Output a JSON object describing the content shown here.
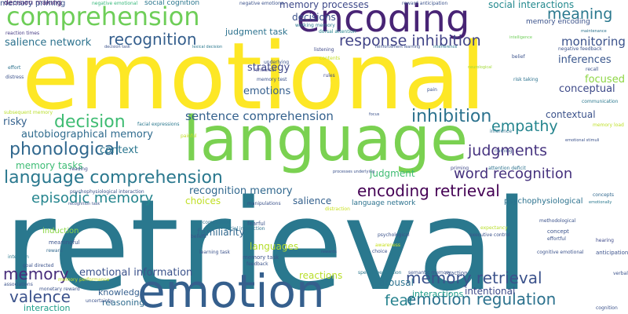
{
  "words": [
    {
      "text": "retrieval",
      "color": "#2a788e"
    },
    {
      "text": "emotional",
      "color": "#fde725"
    },
    {
      "text": "language",
      "color": "#7ad151"
    },
    {
      "text": "emotion",
      "color": "#355f8d"
    },
    {
      "text": "encoding",
      "color": "#482475"
    },
    {
      "text": "comprehension",
      "color": "#6ece58"
    },
    {
      "text": "language comprehension",
      "color": "#2a788e"
    },
    {
      "text": "memory retrieval",
      "color": "#3b528b"
    },
    {
      "text": "emotion regulation",
      "color": "#2c728e"
    },
    {
      "text": "encoding retrieval",
      "color": "#440154"
    },
    {
      "text": "inhibition",
      "color": "#2c728e"
    },
    {
      "text": "response inhibition",
      "color": "#414487"
    },
    {
      "text": "recognition",
      "color": "#355f8d"
    },
    {
      "text": "decision",
      "color": "#3fbc73"
    },
    {
      "text": "phonological",
      "color": "#31688e"
    },
    {
      "text": "episodic memory",
      "color": "#25858e"
    },
    {
      "text": "valence",
      "color": "#3b528b"
    },
    {
      "text": "memory",
      "color": "#472c7a"
    },
    {
      "text": "word recognition",
      "color": "#46327e"
    },
    {
      "text": "judgments",
      "color": "#46337f"
    },
    {
      "text": "empathy",
      "color": "#25858e"
    },
    {
      "text": "meaning",
      "color": "#2a788e"
    },
    {
      "text": "sentence comprehension",
      "color": "#34618d"
    },
    {
      "text": "fear",
      "color": "#26828e"
    },
    {
      "text": "monitoring",
      "color": "#3b528b"
    },
    {
      "text": "memory processes",
      "color": "#3e4989"
    },
    {
      "text": "autobiographical memory",
      "color": "#2f6b8e"
    },
    {
      "text": "recognition memory",
      "color": "#31688e"
    },
    {
      "text": "emotional information",
      "color": "#3b528b"
    },
    {
      "text": "judgment task",
      "color": "#2c728e"
    },
    {
      "text": "salience network",
      "color": "#2c728e"
    },
    {
      "text": "decisions",
      "color": "#3b528b"
    },
    {
      "text": "strategy",
      "color": "#3f4889"
    },
    {
      "text": "emotions",
      "color": "#355f8d"
    },
    {
      "text": "conceptual",
      "color": "#3e4a89"
    },
    {
      "text": "inferences",
      "color": "#39568c"
    },
    {
      "text": "focused",
      "color": "#8ed645"
    },
    {
      "text": "contextual",
      "color": "#3b528b"
    },
    {
      "text": "risky",
      "color": "#34618d"
    },
    {
      "text": "context",
      "color": "#2a768e"
    },
    {
      "text": "memory tasks",
      "color": "#3dbc74"
    },
    {
      "text": "judgment",
      "color": "#3fbc73"
    },
    {
      "text": "choices",
      "color": "#c0df25"
    },
    {
      "text": "salience",
      "color": "#34618d"
    },
    {
      "text": "familiarity",
      "color": "#31688e"
    },
    {
      "text": "languages",
      "color": "#b5de2b"
    },
    {
      "text": "arousal",
      "color": "#2c728e"
    },
    {
      "text": "intentional",
      "color": "#3e4a89"
    },
    {
      "text": "reactions",
      "color": "#b8de29"
    },
    {
      "text": "knowledge",
      "color": "#355f8d"
    },
    {
      "text": "reasoning",
      "color": "#2f6b8e"
    },
    {
      "text": "interaction",
      "color": "#1f9e89"
    },
    {
      "text": "interactions",
      "color": "#1e9c89"
    },
    {
      "text": "induction",
      "color": "#8bd646"
    },
    {
      "text": "psychophysiological",
      "color": "#2c728e"
    },
    {
      "text": "language network",
      "color": "#2c728e"
    },
    {
      "text": "decision making",
      "color": "#471063"
    },
    {
      "text": "social cognition",
      "color": "#2a768e"
    },
    {
      "text": "social interactions",
      "color": "#23898e"
    },
    {
      "text": "memory encoding",
      "color": "#3b528b"
    },
    {
      "text": "negative emotional",
      "color": "#35b779"
    },
    {
      "text": "negative emotions",
      "color": "#3b528b"
    },
    {
      "text": "reaction times",
      "color": "#443983"
    },
    {
      "text": "working memory",
      "color": "#2a768e"
    },
    {
      "text": "dorsal attention",
      "color": "#25858e"
    },
    {
      "text": "reward anticipation",
      "color": "#3b528b"
    },
    {
      "text": "maintenance",
      "color": "#2c728e"
    },
    {
      "text": "decision task",
      "color": "#3b528b"
    },
    {
      "text": "lexical decision",
      "color": "#2a788e"
    },
    {
      "text": "reinforcement learning",
      "color": "#3b528b"
    },
    {
      "text": "interference",
      "color": "#2a788e"
    },
    {
      "text": "intelligence",
      "color": "#6ece58"
    },
    {
      "text": "negative feedback",
      "color": "#3b528b"
    },
    {
      "text": "listening",
      "color": "#3e4989"
    },
    {
      "text": "contents",
      "color": "#c2df23"
    },
    {
      "text": "underlying",
      "color": "#3b528b"
    },
    {
      "text": "rehearsal",
      "color": "#414487"
    },
    {
      "text": "memory test",
      "color": "#3b528b"
    },
    {
      "text": "rules",
      "color": "#3e4989"
    },
    {
      "text": "belief",
      "color": "#3b528b"
    },
    {
      "text": "neurological",
      "color": "#a2da37"
    },
    {
      "text": "recall",
      "color": "#3b528b"
    },
    {
      "text": "risk taking",
      "color": "#2c728e"
    },
    {
      "text": "communication",
      "color": "#2a788e"
    },
    {
      "text": "effort",
      "color": "#2c728e"
    },
    {
      "text": "distress",
      "color": "#3b528b"
    },
    {
      "text": "pain",
      "color": "#3b528b"
    },
    {
      "text": "subsequent memory",
      "color": "#b8de29"
    },
    {
      "text": "memory load",
      "color": "#bddf26"
    },
    {
      "text": "emotional stimuli",
      "color": "#3b528b"
    },
    {
      "text": "facial expressions",
      "color": "#2a788e"
    },
    {
      "text": "painful",
      "color": "#c2df23"
    },
    {
      "text": "inference",
      "color": "#2c728e"
    },
    {
      "text": "naming",
      "color": "#3b528b"
    },
    {
      "text": "priming",
      "color": "#3e4989"
    },
    {
      "text": "attention deficit",
      "color": "#2c728e"
    },
    {
      "text": "processes underlying",
      "color": "#3b528b"
    },
    {
      "text": "reading",
      "color": "#3e4989"
    },
    {
      "text": "psychophysiological interaction",
      "color": "#3b528b"
    },
    {
      "text": "manipulations",
      "color": "#3b528b"
    },
    {
      "text": "distraction",
      "color": "#c8e020"
    },
    {
      "text": "concepts",
      "color": "#31688e"
    },
    {
      "text": "emotionally",
      "color": "#2a788e"
    },
    {
      "text": "methodological",
      "color": "#3b528b"
    },
    {
      "text": "competition",
      "color": "#2c728e"
    },
    {
      "text": "fearful",
      "color": "#3b528b"
    },
    {
      "text": "social interaction",
      "color": "#2c728e"
    },
    {
      "text": "beliefs",
      "color": "#3b528b"
    },
    {
      "text": "expectancy",
      "color": "#b8de29"
    },
    {
      "text": "executive control",
      "color": "#3b528b"
    },
    {
      "text": "concept",
      "color": "#3b528b"
    },
    {
      "text": "effortful",
      "color": "#3b528b"
    },
    {
      "text": "hearing",
      "color": "#3e4989"
    },
    {
      "text": "meaningful",
      "color": "#3b528b"
    },
    {
      "text": "skills",
      "color": "#2a788e"
    },
    {
      "text": "learning task",
      "color": "#3b528b"
    },
    {
      "text": "rewards",
      "color": "#3b528b"
    },
    {
      "text": "awareness",
      "color": "#c8e020"
    },
    {
      "text": "psychological",
      "color": "#3b528b"
    },
    {
      "text": "choice",
      "color": "#3b528b"
    },
    {
      "text": "cognitive emotional",
      "color": "#3b528b"
    },
    {
      "text": "anticipation",
      "color": "#3b528b"
    },
    {
      "text": "intention",
      "color": "#2a788e"
    },
    {
      "text": "reward",
      "color": "#31688e"
    },
    {
      "text": "memory task",
      "color": "#3b528b"
    },
    {
      "text": "feedback",
      "color": "#3b528b"
    },
    {
      "text": "goal directed",
      "color": "#3b528b"
    },
    {
      "text": "speech perception",
      "color": "#2a788e"
    },
    {
      "text": "semantic memory",
      "color": "#3b528b"
    },
    {
      "text": "reaction",
      "color": "#3b528b"
    },
    {
      "text": "associations",
      "color": "#3b528b"
    },
    {
      "text": "memory performance",
      "color": "#c2df23"
    },
    {
      "text": "monetary reward",
      "color": "#3b528b"
    },
    {
      "text": "uncertainty",
      "color": "#3b528b"
    },
    {
      "text": "recognition task",
      "color": "#3b528b"
    },
    {
      "text": "cognition",
      "color": "#3b528b"
    },
    {
      "text": "verbal fluency",
      "color": "#3b528b"
    },
    {
      "text": "focus",
      "color": "#3b528b"
    },
    {
      "text": "memory priming",
      "color": "#3b528b"
    }
  ]
}
